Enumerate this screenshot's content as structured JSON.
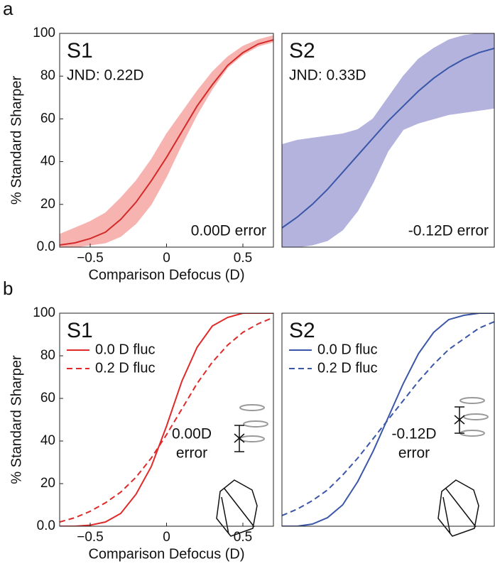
{
  "panel_labels": [
    "a",
    "b"
  ],
  "chart_data": [
    {
      "type": "line",
      "title": "S1",
      "subtitle": "JND: 0.22D",
      "annotation": "0.00D error",
      "xlabel": "Comparison Defocus (D)",
      "ylabel": "% Standard Sharper",
      "xlim": [
        -0.7,
        0.7
      ],
      "ylim": [
        0,
        100
      ],
      "xticks": [
        {
          "value": -0.5,
          "label": "−0.5"
        },
        0,
        0.5
      ],
      "yticks": [
        {
          "value": 0,
          "label": "0.0"
        },
        20,
        40,
        60,
        80,
        100
      ],
      "x": [
        -0.7,
        -0.6,
        -0.5,
        -0.4,
        -0.3,
        -0.2,
        -0.1,
        0,
        0.1,
        0.2,
        0.3,
        0.4,
        0.5,
        0.6,
        0.7
      ],
      "band": {
        "color": "#f7b3b0",
        "lower": [
          0,
          0,
          1,
          2,
          5,
          11,
          20,
          33,
          48,
          62,
          74,
          84,
          90,
          94,
          96
        ],
        "upper": [
          6,
          9,
          12,
          16,
          23,
          31,
          41,
          53,
          63,
          73,
          82,
          89,
          94,
          97,
          99
        ]
      },
      "series": [
        {
          "color": "#d42a2a",
          "values": [
            1,
            2,
            4,
            7,
            13,
            21,
            31,
            42,
            54,
            66,
            76,
            85,
            91,
            95,
            97
          ]
        }
      ]
    },
    {
      "type": "line",
      "title": "S2",
      "subtitle": "JND: 0.33D",
      "annotation": "-0.12D error",
      "xlim": [
        -0.7,
        0.7
      ],
      "ylim": [
        0,
        100
      ],
      "x": [
        -0.7,
        -0.6,
        -0.5,
        -0.4,
        -0.3,
        -0.2,
        -0.1,
        0,
        0.1,
        0.2,
        0.3,
        0.4,
        0.5,
        0.6,
        0.7
      ],
      "band": {
        "color": "#b3b3dd",
        "lower": [
          0,
          0,
          1,
          3,
          8,
          17,
          30,
          45,
          55,
          58,
          60,
          62,
          63,
          64,
          65
        ],
        "upper": [
          48,
          50,
          51,
          52,
          53,
          55,
          60,
          70,
          80,
          88,
          93,
          97,
          99,
          100,
          100
        ]
      },
      "series": [
        {
          "color": "#3a56a8",
          "values": [
            9,
            14,
            20,
            27,
            35,
            43,
            51,
            59,
            66,
            73,
            79,
            84,
            88,
            91,
            93
          ]
        }
      ]
    },
    {
      "type": "line",
      "title": "S1",
      "annotation": [
        "0.00D",
        "error"
      ],
      "xlabel": "Comparison Defocus (D)",
      "ylabel": "% Standard Sharper",
      "xlim": [
        -0.7,
        0.7
      ],
      "ylim": [
        0,
        100
      ],
      "xticks": [
        {
          "value": -0.5,
          "label": "−0.5"
        },
        0,
        0.5
      ],
      "yticks": [
        {
          "value": 0,
          "label": "0.0"
        },
        20,
        40,
        60,
        80,
        100
      ],
      "legend": "upper left",
      "x": [
        -0.7,
        -0.6,
        -0.5,
        -0.4,
        -0.3,
        -0.2,
        -0.1,
        0,
        0.1,
        0.2,
        0.3,
        0.4,
        0.5,
        0.6,
        0.7
      ],
      "series": [
        {
          "name": "0.0 D fluc",
          "color": "#e02a2a",
          "dash": false,
          "values": [
            0,
            0,
            0.5,
            2,
            6,
            15,
            28,
            47,
            68,
            84,
            94,
            98,
            100,
            100,
            100
          ]
        },
        {
          "name": "0.2 D fluc",
          "color": "#e02a2a",
          "dash": true,
          "values": [
            2,
            4,
            7,
            11,
            16,
            23,
            32,
            43,
            55,
            67,
            77,
            85,
            91,
            95,
            98
          ]
        }
      ]
    },
    {
      "type": "line",
      "title": "S2",
      "annotation": [
        "-0.12D",
        "error"
      ],
      "xlim": [
        -0.7,
        0.7
      ],
      "ylim": [
        0,
        100
      ],
      "legend": "upper left",
      "x": [
        -0.7,
        -0.6,
        -0.5,
        -0.4,
        -0.3,
        -0.2,
        -0.1,
        0,
        0.1,
        0.2,
        0.3,
        0.4,
        0.5,
        0.6,
        0.7
      ],
      "series": [
        {
          "name": "0.0 D fluc",
          "color": "#3a56a8",
          "dash": false,
          "values": [
            0,
            0,
            1,
            4,
            10,
            21,
            35,
            51,
            67,
            81,
            91,
            97,
            99,
            100,
            100
          ]
        },
        {
          "name": "0.2 D fluc",
          "color": "#3a56a8",
          "dash": true,
          "values": [
            5,
            8,
            12,
            17,
            24,
            32,
            41,
            50,
            59,
            68,
            76,
            83,
            88,
            93,
            96
          ]
        }
      ]
    }
  ]
}
